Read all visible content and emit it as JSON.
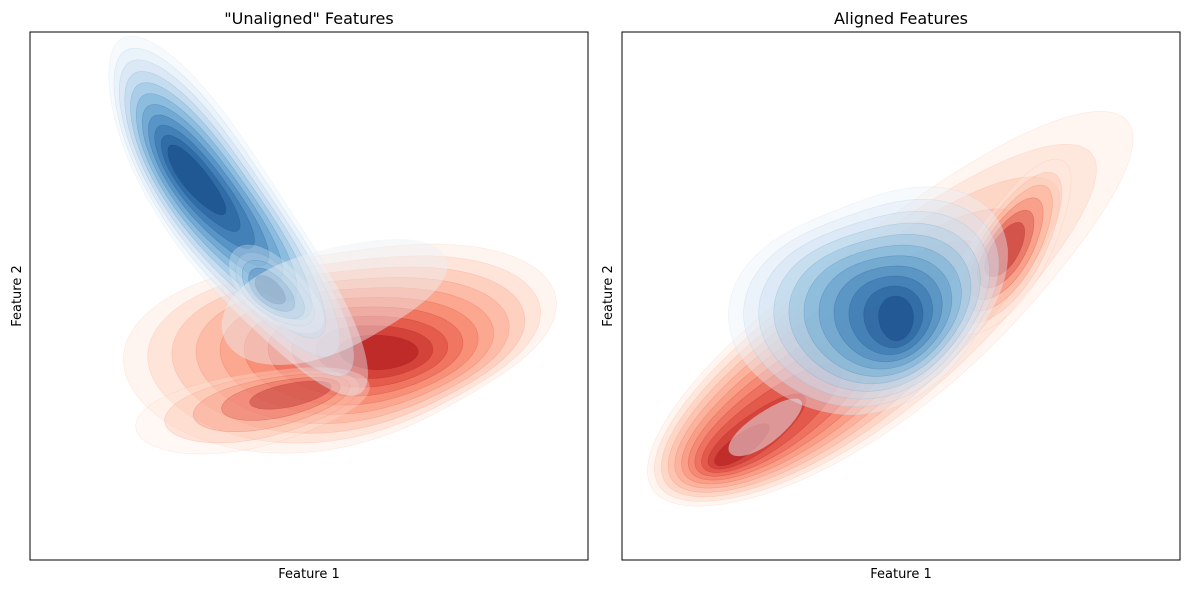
{
  "chart_data": [
    {
      "type": "kde-contour",
      "title": "\"Unaligned\" Features",
      "xlabel": "Feature 1",
      "ylabel": "Feature 2",
      "ticks_visible": false,
      "grid": false,
      "series": [
        {
          "name": "",
          "colormap": "Blues",
          "color": "#2b6cb0"
        },
        {
          "name": "",
          "colormap": "Reds",
          "color": "#e0453a"
        }
      ]
    },
    {
      "type": "kde-contour",
      "title": "Aligned Features",
      "xlabel": "Feature 1",
      "ylabel": "Feature 2",
      "ticks_visible": false,
      "grid": false,
      "series": [
        {
          "name": "",
          "colormap": "Blues",
          "color": "#2b6cb0"
        },
        {
          "name": "",
          "colormap": "Reds",
          "color": "#e0453a"
        }
      ]
    }
  ]
}
